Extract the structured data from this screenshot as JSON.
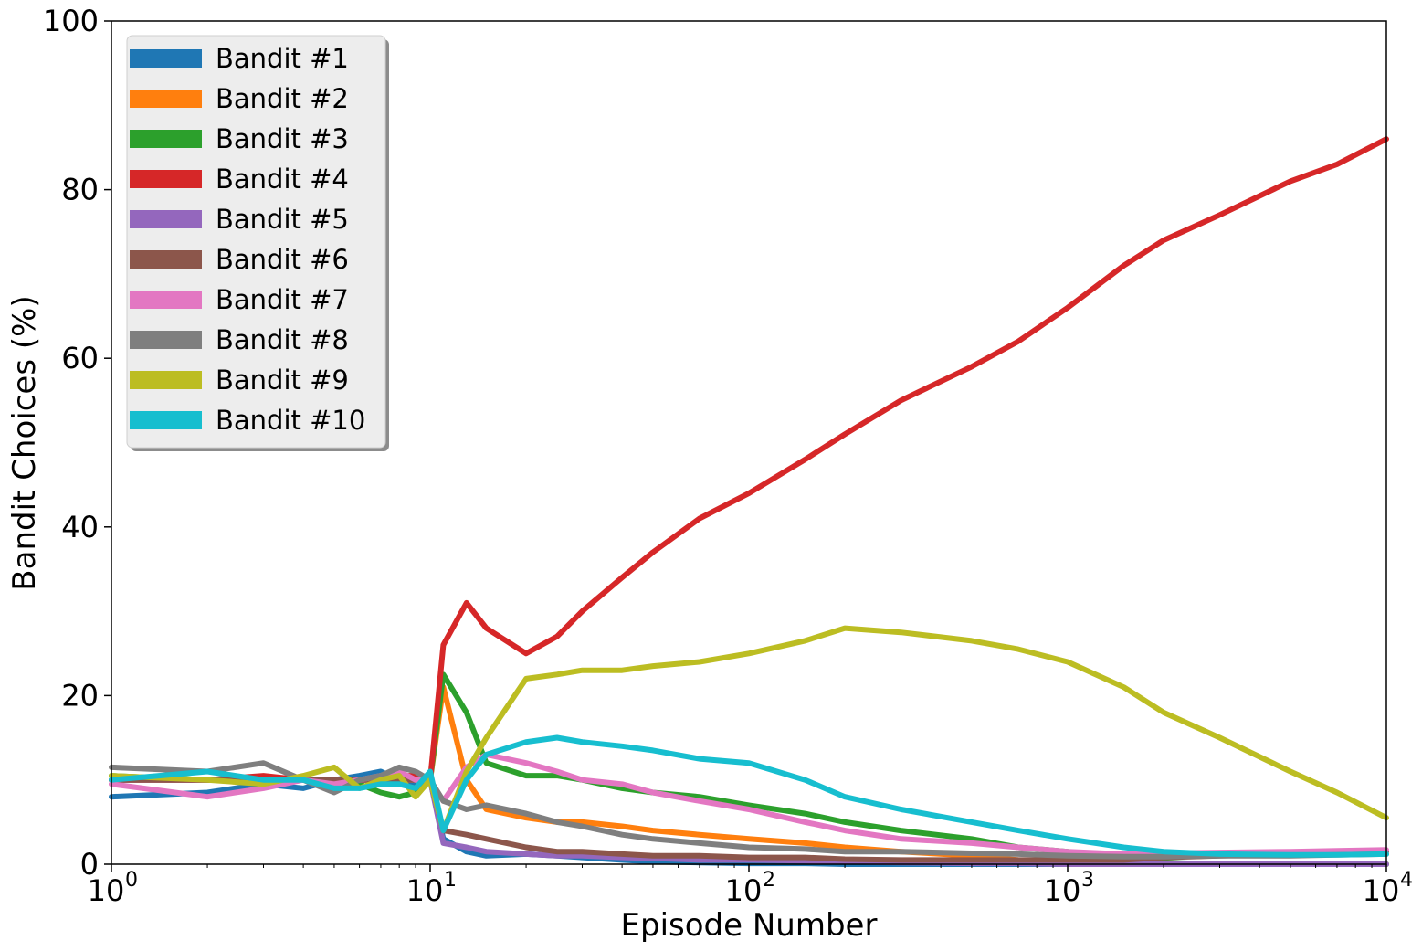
{
  "chart_data": {
    "type": "line",
    "xscale": "log",
    "xlabel": "Episode Number",
    "ylabel": "Bandit Choices (%)",
    "xlim": [
      1,
      10000
    ],
    "ylim": [
      0,
      100
    ],
    "yticks": [
      0,
      20,
      40,
      60,
      80,
      100
    ],
    "xticks": [
      {
        "value": 1,
        "base": "10",
        "exp": "0"
      },
      {
        "value": 10,
        "base": "10",
        "exp": "1"
      },
      {
        "value": 100,
        "base": "10",
        "exp": "2"
      },
      {
        "value": 1000,
        "base": "10",
        "exp": "3"
      },
      {
        "value": 10000,
        "base": "10",
        "exp": "4"
      }
    ],
    "grid": false,
    "legend_position": "upper-left",
    "x": [
      1,
      2,
      3,
      4,
      5,
      6,
      7,
      8,
      9,
      10,
      11,
      13,
      15,
      20,
      25,
      30,
      40,
      50,
      70,
      100,
      150,
      200,
      300,
      500,
      700,
      1000,
      1500,
      2000,
      3000,
      5000,
      7000,
      10000
    ],
    "series": [
      {
        "name": "Bandit #1",
        "color": "#1f77b4",
        "values": [
          8,
          8.5,
          9.5,
          9,
          10,
          10.5,
          11,
          10,
          9.5,
          10,
          3,
          1.5,
          1,
          1.2,
          1,
          0.8,
          0.5,
          0.3,
          0.2,
          0.1,
          0.1,
          0,
          0,
          0,
          0,
          0,
          0,
          0,
          0,
          0,
          0,
          0
        ]
      },
      {
        "name": "Bandit #2",
        "color": "#ff7f0e",
        "values": [
          10,
          10,
          10,
          10,
          10,
          10,
          10,
          10,
          10,
          10,
          21,
          10,
          6.5,
          5.5,
          5,
          5,
          4.5,
          4,
          3.5,
          3,
          2.5,
          2,
          1.5,
          1,
          0.5,
          0.2,
          0,
          0,
          0,
          0,
          0,
          0
        ]
      },
      {
        "name": "Bandit #3",
        "color": "#2ca02c",
        "values": [
          10.5,
          10,
          10,
          10,
          10,
          9.5,
          8.5,
          8,
          8.5,
          10,
          22.5,
          18,
          12,
          10.5,
          10.5,
          10,
          9,
          8.5,
          8,
          7,
          6,
          5,
          4,
          3,
          2,
          1.5,
          0.5,
          0.2,
          0,
          0,
          0,
          0
        ]
      },
      {
        "name": "Bandit #4",
        "color": "#d62728",
        "values": [
          10,
          10,
          10.5,
          10,
          10,
          10,
          10,
          10.5,
          10.5,
          10,
          26,
          31,
          28,
          25,
          27,
          30,
          34,
          37,
          41,
          44,
          48,
          51,
          55,
          59,
          62,
          66,
          71,
          74,
          77,
          81,
          83,
          86
        ]
      },
      {
        "name": "Bandit #5",
        "color": "#9467bd",
        "values": [
          10,
          10,
          10,
          10,
          10,
          10,
          10,
          10,
          10,
          10,
          2.5,
          2,
          1.5,
          1.2,
          1,
          1,
          0.8,
          0.7,
          0.5,
          0.5,
          0.4,
          0.3,
          0.2,
          0.1,
          0.1,
          0,
          0,
          0,
          0,
          0,
          0,
          0
        ]
      },
      {
        "name": "Bandit #6",
        "color": "#8c564b",
        "values": [
          10,
          10,
          10,
          10,
          10,
          10,
          10,
          10,
          10,
          10,
          4,
          3.5,
          3,
          2,
          1.5,
          1.5,
          1.2,
          1,
          1,
          0.8,
          0.8,
          0.6,
          0.5,
          0.5,
          0.5,
          0.5,
          0.5,
          0.8,
          1,
          1.2,
          1.3,
          1.5
        ]
      },
      {
        "name": "Bandit #7",
        "color": "#e377c2",
        "values": [
          9.5,
          8,
          9,
          10,
          9.5,
          10,
          10.5,
          11,
          10,
          10,
          7.5,
          11.5,
          13,
          12,
          11,
          10,
          9.5,
          8.5,
          7.5,
          6.5,
          5,
          4,
          3,
          2.5,
          2,
          1.5,
          1.2,
          1.3,
          1.4,
          1.5,
          1.6,
          1.7
        ]
      },
      {
        "name": "Bandit #8",
        "color": "#7f7f7f",
        "values": [
          11.5,
          11,
          12,
          10,
          8.5,
          10,
          10.5,
          11.5,
          11,
          10,
          7.5,
          6.5,
          7,
          6,
          5,
          4.5,
          3.5,
          3,
          2.5,
          2,
          1.8,
          1.5,
          1.5,
          1.3,
          1.2,
          1,
          0.9,
          0.9,
          1,
          1,
          1.1,
          1.2
        ]
      },
      {
        "name": "Bandit #9",
        "color": "#bcbd22",
        "values": [
          10.5,
          10,
          9.5,
          10.5,
          11.5,
          9,
          10,
          10.5,
          8,
          10,
          4,
          11,
          15,
          22,
          22.5,
          23,
          23,
          23.5,
          24,
          25,
          26.5,
          28,
          27.5,
          26.5,
          25.5,
          24,
          21,
          18,
          15,
          11,
          8.5,
          5.5
        ]
      },
      {
        "name": "Bandit #10",
        "color": "#17becf",
        "values": [
          10,
          11,
          10,
          10,
          9,
          9,
          9.5,
          9.5,
          9,
          11,
          4,
          10,
          13,
          14.5,
          15,
          14.5,
          14,
          13.5,
          12.5,
          12,
          10,
          8,
          6.5,
          5,
          4,
          3,
          2,
          1.5,
          1.2,
          1.1,
          1.1,
          1.2
        ]
      }
    ]
  }
}
